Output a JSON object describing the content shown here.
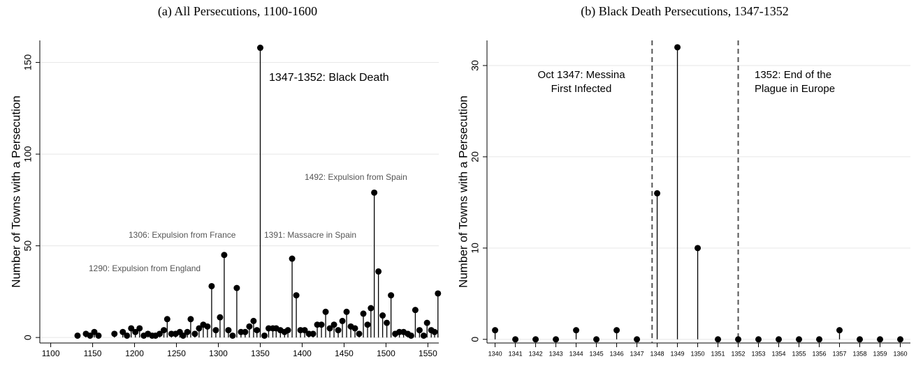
{
  "chart_data": [
    {
      "type": "stem",
      "title": "(a)  All Persecutions, 1100-1600",
      "y_label": "Number of Towns with a Persecution",
      "color": "#000000",
      "grid": true,
      "x": [
        1132,
        1142,
        1147,
        1152,
        1157,
        1176,
        1186,
        1191,
        1196,
        1201,
        1206,
        1211,
        1216,
        1221,
        1225,
        1230,
        1235,
        1239,
        1244,
        1249,
        1254,
        1258,
        1263,
        1267,
        1272,
        1277,
        1282,
        1287,
        1292,
        1297,
        1302,
        1307,
        1312,
        1317,
        1322,
        1327,
        1332,
        1337,
        1342,
        1346,
        1350,
        1355,
        1360,
        1365,
        1369,
        1374,
        1379,
        1383,
        1388,
        1393,
        1398,
        1403,
        1408,
        1413,
        1418,
        1423,
        1428,
        1433,
        1438,
        1443,
        1448,
        1453,
        1458,
        1463,
        1468,
        1473,
        1478,
        1482,
        1486,
        1491,
        1496,
        1501,
        1506,
        1511,
        1516,
        1521,
        1526,
        1530,
        1535,
        1540,
        1545,
        1549,
        1554,
        1558,
        1562
      ],
      "values": [
        1,
        2,
        1,
        3,
        1,
        2,
        3,
        1,
        5,
        3,
        5,
        1,
        2,
        1,
        1,
        2,
        4,
        10,
        2,
        2,
        3,
        1,
        3,
        10,
        2,
        5,
        7,
        6,
        28,
        4,
        11,
        45,
        4,
        1,
        27,
        3,
        3,
        6,
        9,
        4,
        158,
        1,
        5,
        5,
        5,
        4,
        3,
        4,
        43,
        23,
        4,
        4,
        2,
        2,
        7,
        7,
        14,
        5,
        7,
        4,
        9,
        14,
        6,
        5,
        2,
        13,
        7,
        16,
        79,
        36,
        12,
        8,
        23,
        2,
        3,
        3,
        2,
        1,
        15,
        4,
        1,
        8,
        4,
        3,
        24
      ],
      "xlim": [
        1087,
        1563
      ],
      "xticks": [
        1100,
        1150,
        1200,
        1250,
        1300,
        1350,
        1400,
        1450,
        1500,
        1550
      ],
      "ylim": [
        -3,
        162
      ],
      "yticks": [
        0,
        50,
        100,
        150
      ],
      "annotations": [
        "1347-1352: Black Death",
        "1492: Expulsion from Spain",
        "1306: Expulsion from France",
        "1391: Massacre in Spain",
        "1290: Expulsion from England"
      ]
    },
    {
      "type": "stem",
      "title": "(b)  Black Death Persecutions, 1347-1352",
      "y_label": "Number of Towns with a Persecution",
      "color": "#000000",
      "grid": true,
      "x": [
        1340,
        1341,
        1342,
        1343,
        1344,
        1345,
        1346,
        1347,
        1348,
        1349,
        1350,
        1351,
        1352,
        1353,
        1354,
        1355,
        1356,
        1357,
        1358,
        1359,
        1360
      ],
      "values": [
        1,
        0,
        0,
        0,
        1,
        0,
        1,
        0,
        16,
        32,
        10,
        0,
        0,
        0,
        0,
        0,
        0,
        1,
        0,
        0,
        0
      ],
      "xlim": [
        1339.6,
        1360.5
      ],
      "xticks": [
        1340,
        1341,
        1342,
        1343,
        1344,
        1345,
        1346,
        1347,
        1348,
        1349,
        1350,
        1351,
        1352,
        1353,
        1354,
        1355,
        1356,
        1357,
        1358,
        1359,
        1360
      ],
      "ylim": [
        -0.4,
        32.75
      ],
      "yticks": [
        0,
        10,
        20,
        30
      ],
      "vlines": [
        {
          "value": 1347.75,
          "label": [
            "Oct 1347: Messina",
            "First Infected"
          ]
        },
        {
          "value": 1352,
          "label": [
            "1352: End of the",
            "Plague in Europe"
          ]
        }
      ]
    }
  ]
}
